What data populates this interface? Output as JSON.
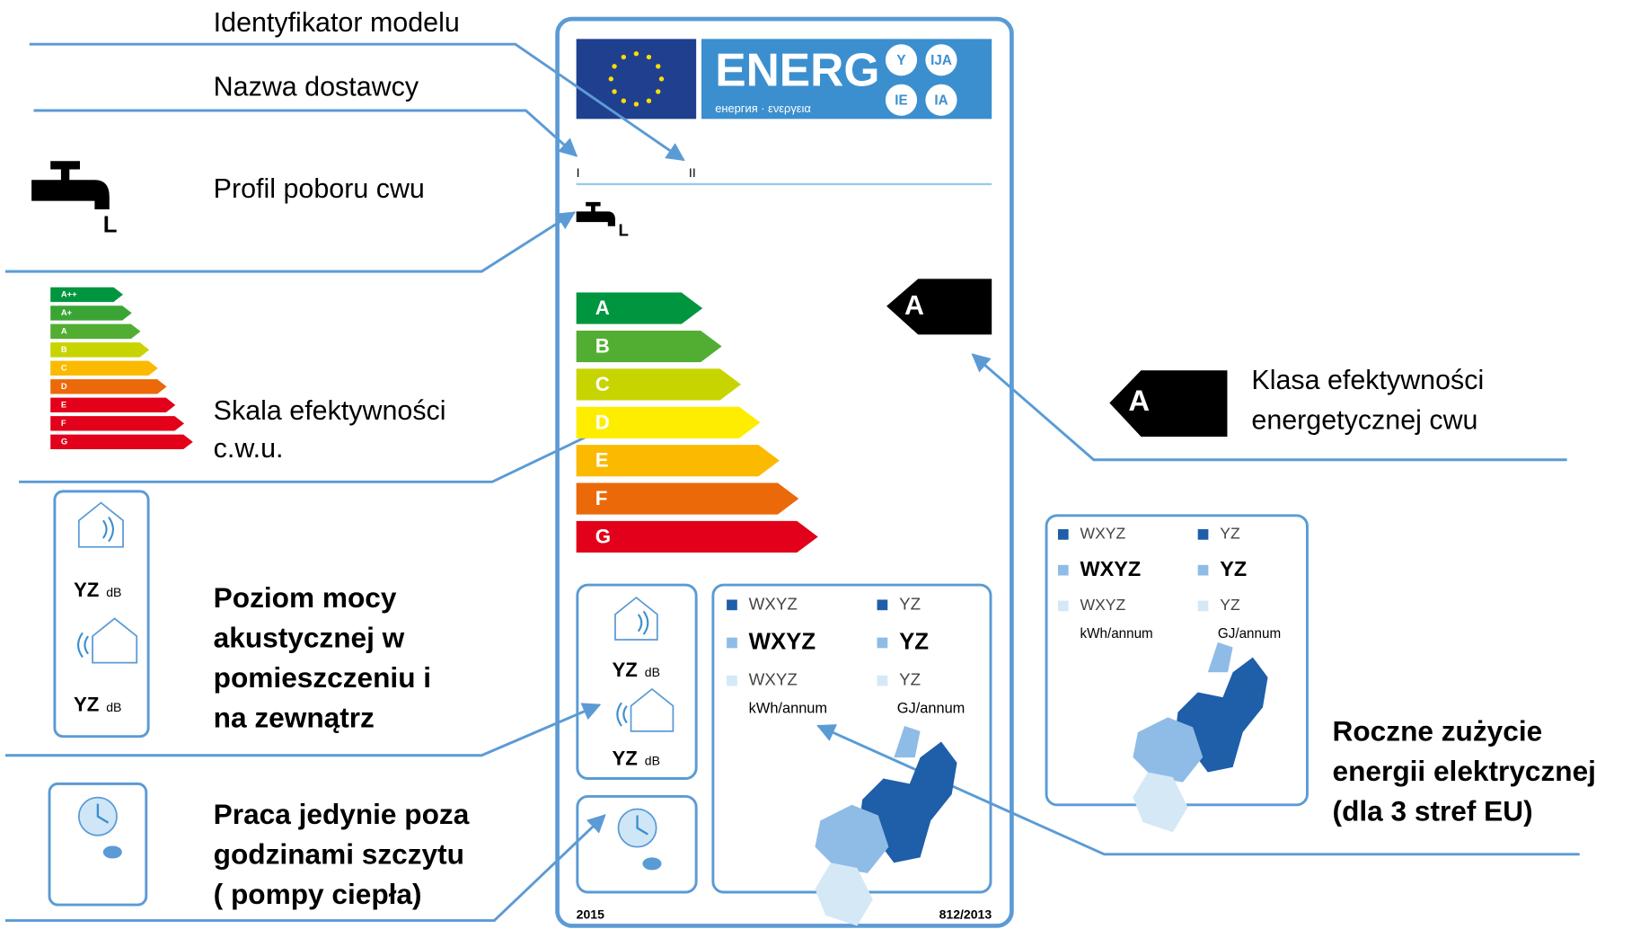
{
  "callouts": {
    "model": [
      "Identyfikator modelu"
    ],
    "supplier": [
      "Nazwa dostawcy"
    ],
    "profile": [
      "Profil poboru cwu"
    ],
    "scale": [
      "Skala efektywności",
      "c.w.u."
    ],
    "class": [
      "Klasa efektywności",
      "energetycznej cwu"
    ],
    "noise": [
      "Poziom mocy",
      "akustycznej w",
      "pomieszczeniu i",
      "na zewnątrz"
    ],
    "offpeak": [
      "Praca jedynie poza",
      "godzinami szczytu",
      "( pompy ciepła)"
    ],
    "consumption": [
      "Roczne zużycie",
      "energii elektrycznej",
      "(dla 3 stref EU)"
    ]
  },
  "label": {
    "energy_word": "ENERG",
    "languages": [
      "Y",
      "IJA",
      "IE",
      "IA"
    ],
    "subtitle": "енергия · ενεργεια",
    "supplier_mark": "I",
    "model_mark": "II",
    "profile": "L",
    "classes": [
      "A",
      "B",
      "C",
      "D",
      "E",
      "F",
      "G"
    ],
    "class_value": "A",
    "noise": [
      {
        "value": "YZ",
        "unit": "dB"
      },
      {
        "value": "YZ",
        "unit": "dB"
      }
    ],
    "consumption": {
      "rows": [
        [
          "WXYZ",
          "YZ"
        ],
        [
          "WXYZ",
          "YZ"
        ],
        [
          "WXYZ",
          "YZ"
        ]
      ],
      "units": [
        "kWh/annum",
        "GJ/annum"
      ]
    },
    "year": "2015",
    "regulation": "812/2013"
  },
  "icons": {
    "profile": "L",
    "scale_classes": [
      "A++",
      "A+",
      "A",
      "B",
      "C",
      "D",
      "E",
      "F",
      "G"
    ],
    "class_value": "A",
    "noise": [
      {
        "value": "YZ",
        "unit": "dB"
      },
      {
        "value": "YZ",
        "unit": "dB"
      }
    ],
    "consumption": {
      "rows": [
        [
          "WXYZ",
          "YZ"
        ],
        [
          "WXYZ",
          "YZ"
        ],
        [
          "WXYZ",
          "YZ"
        ]
      ],
      "units": [
        "kWh/annum",
        "GJ/annum"
      ]
    }
  }
}
